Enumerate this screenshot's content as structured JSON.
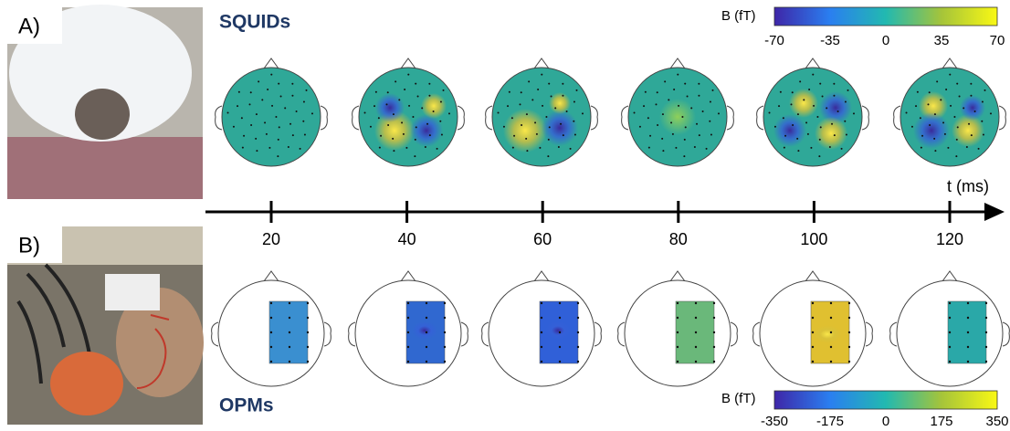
{
  "panel_a": {
    "label": "A)",
    "title": "SQUIDs",
    "colorbar": {
      "label": "B (fT)",
      "ticks": [
        -70,
        -35,
        0,
        35,
        70
      ]
    }
  },
  "panel_b": {
    "label": "B)",
    "title": "OPMs",
    "colorbar": {
      "label": "B (fT)",
      "ticks": [
        -350,
        -175,
        0,
        175,
        350
      ]
    }
  },
  "time_axis": {
    "label": "t (ms)",
    "ticks": [
      20,
      40,
      60,
      80,
      100,
      120
    ]
  }
}
